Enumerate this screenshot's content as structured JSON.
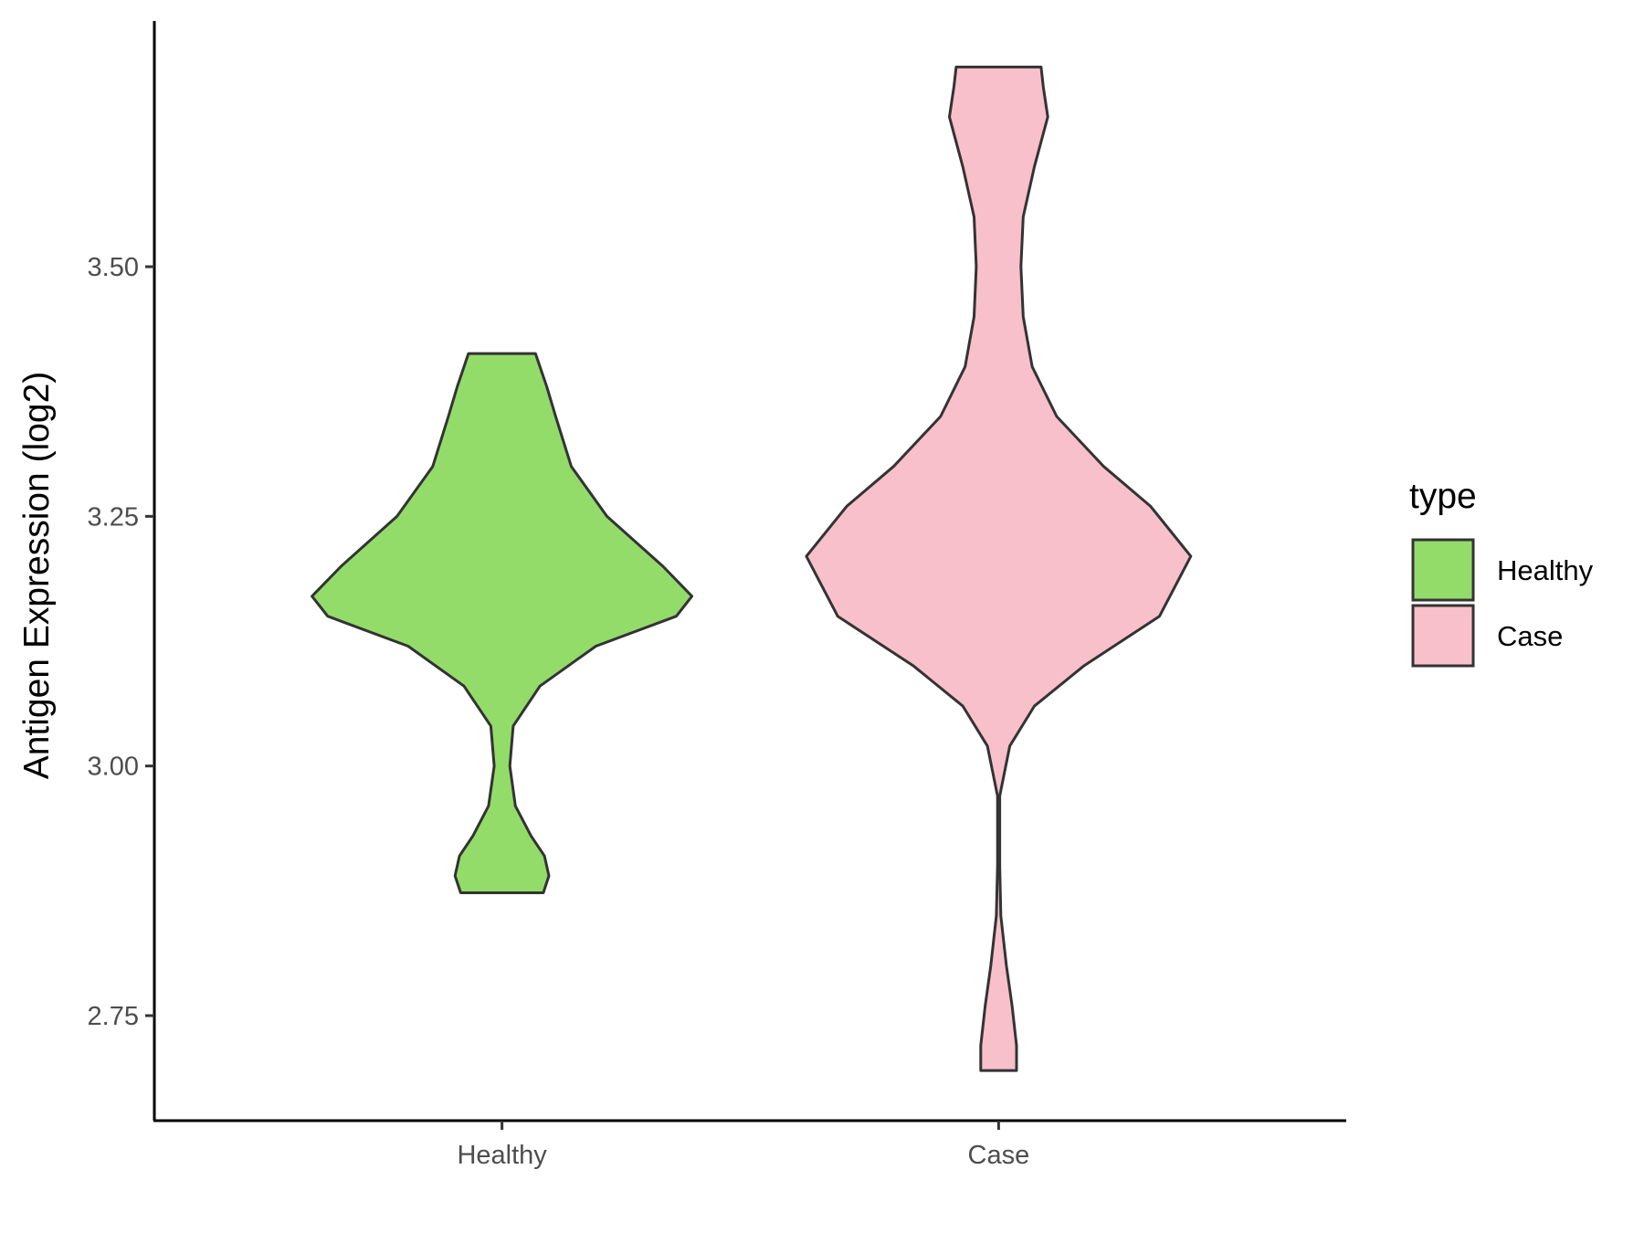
{
  "chart_data": {
    "type": "violin",
    "ylabel": "Antigen Expression (log2)",
    "xlabel": "",
    "categories": [
      "Healthy",
      "Case"
    ],
    "ylim": [
      2.64,
      3.84
    ],
    "yticks": [
      2.75,
      3.0,
      3.25,
      3.5
    ],
    "ytick_labels": [
      "2.75",
      "3.00",
      "3.25",
      "3.50"
    ],
    "grid": false,
    "legend": {
      "title": "type",
      "placement": "right",
      "entries": [
        {
          "label": "Healthy",
          "color": "#93dc6a"
        },
        {
          "label": "Case",
          "color": "#f8c0cb"
        }
      ]
    },
    "series": [
      {
        "category": "Healthy",
        "color": "#93dc6a",
        "min": 2.873,
        "max": 3.413,
        "profile": [
          [
            2.873,
            0.185
          ],
          [
            2.89,
            0.21
          ],
          [
            2.91,
            0.19
          ],
          [
            2.93,
            0.13
          ],
          [
            2.96,
            0.06
          ],
          [
            3.0,
            0.035
          ],
          [
            3.04,
            0.05
          ],
          [
            3.08,
            0.17
          ],
          [
            3.12,
            0.42
          ],
          [
            3.15,
            0.78
          ],
          [
            3.17,
            0.85
          ],
          [
            3.2,
            0.72
          ],
          [
            3.25,
            0.47
          ],
          [
            3.3,
            0.31
          ],
          [
            3.35,
            0.24
          ],
          [
            3.38,
            0.2
          ],
          [
            3.413,
            0.15
          ]
        ]
      },
      {
        "category": "Case",
        "color": "#f8c0cb",
        "min": 2.695,
        "max": 3.7,
        "profile": [
          [
            2.695,
            0.08
          ],
          [
            2.72,
            0.08
          ],
          [
            2.76,
            0.06
          ],
          [
            2.8,
            0.035
          ],
          [
            2.85,
            0.01
          ],
          [
            2.9,
            0.005
          ],
          [
            2.97,
            0.005
          ],
          [
            3.02,
            0.05
          ],
          [
            3.06,
            0.16
          ],
          [
            3.1,
            0.38
          ],
          [
            3.15,
            0.72
          ],
          [
            3.21,
            0.86
          ],
          [
            3.26,
            0.68
          ],
          [
            3.3,
            0.47
          ],
          [
            3.35,
            0.26
          ],
          [
            3.4,
            0.15
          ],
          [
            3.45,
            0.11
          ],
          [
            3.5,
            0.1
          ],
          [
            3.55,
            0.11
          ],
          [
            3.6,
            0.16
          ],
          [
            3.65,
            0.22
          ],
          [
            3.68,
            0.2
          ],
          [
            3.7,
            0.19
          ]
        ]
      }
    ]
  }
}
